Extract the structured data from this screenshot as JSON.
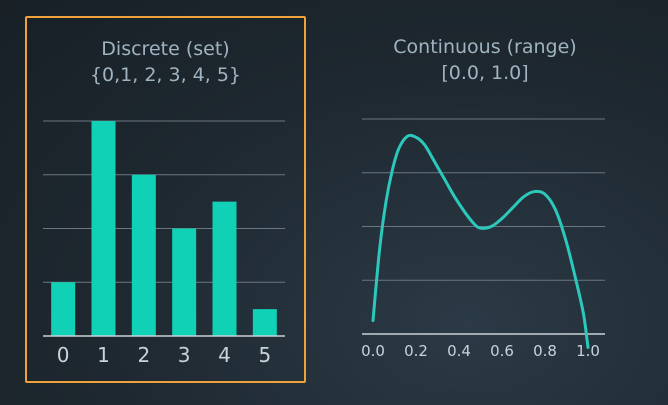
{
  "colors": {
    "bar": "#10d0b5",
    "curve": "#2bc8bb",
    "grid": "#6a7680",
    "axis": "#c9d1d6",
    "frame": "#f0a23a"
  },
  "chart_data": [
    {
      "type": "bar",
      "title": "Discrete (set)",
      "subtitle": "{0,1, 2, 3, 4, 5}",
      "categories": [
        "0",
        "1",
        "2",
        "3",
        "4",
        "5"
      ],
      "values": [
        1,
        4,
        3,
        2,
        2.5,
        0.5
      ],
      "ylim": [
        0,
        4
      ],
      "grid": true
    },
    {
      "type": "line",
      "title": "Continuous (range)",
      "subtitle": "[0.0, 1.0]",
      "x_ticks": [
        "0.0",
        "0.2",
        "0.4",
        "0.6",
        "0.8",
        "1.0"
      ],
      "x": [
        0.0,
        0.03,
        0.06,
        0.09,
        0.12,
        0.16,
        0.2,
        0.24,
        0.28,
        0.33,
        0.38,
        0.43,
        0.47,
        0.5,
        0.55,
        0.6,
        0.65,
        0.7,
        0.75,
        0.8,
        0.85,
        0.9,
        0.95,
        0.98,
        1.0
      ],
      "y": [
        0.25,
        1.55,
        2.45,
        3.05,
        3.45,
        3.68,
        3.66,
        3.52,
        3.25,
        2.9,
        2.55,
        2.25,
        2.05,
        1.97,
        2.0,
        2.15,
        2.35,
        2.55,
        2.65,
        2.6,
        2.3,
        1.7,
        0.9,
        0.35,
        -0.25
      ],
      "xlim": [
        0,
        1
      ],
      "ylim": [
        0,
        4
      ],
      "grid": true
    }
  ]
}
